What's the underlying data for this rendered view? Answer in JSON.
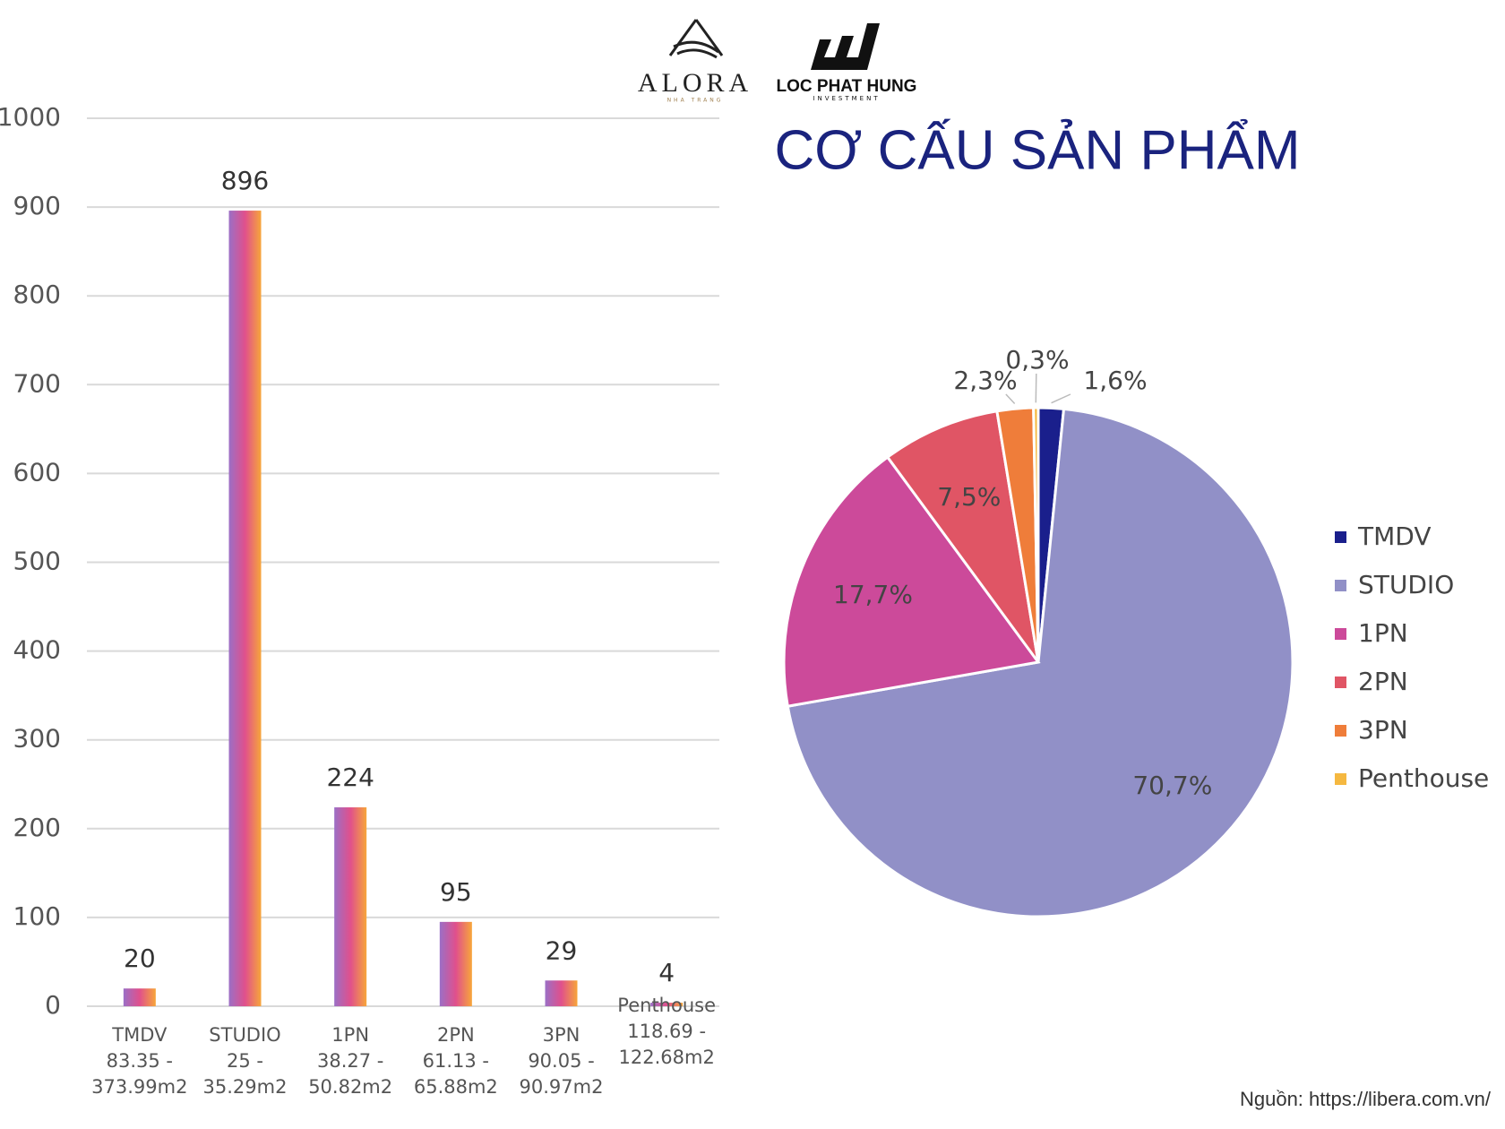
{
  "header": {
    "logo_1": {
      "name": "ALORA",
      "tagline": "NHA TRANG"
    },
    "logo_2": {
      "name": "LOC PHAT HUNG",
      "tagline": "INVESTMENT"
    },
    "title": "CƠ CẤU SẢN PHẨM"
  },
  "chart_data": [
    {
      "type": "bar",
      "categories": [
        [
          "TMDV",
          "83.35 -",
          "373.99m2"
        ],
        [
          "STUDIO",
          "25 -",
          "35.29m2"
        ],
        [
          "1PN",
          "38.27 -",
          "50.82m2"
        ],
        [
          "2PN",
          "61.13 -",
          "65.88m2"
        ],
        [
          "3PN",
          "90.05 -",
          "90.97m2"
        ],
        [
          "Penthouse",
          "118.69 -",
          "122.68m2"
        ]
      ],
      "values": [
        20,
        896,
        224,
        95,
        29,
        4
      ],
      "colors": [
        "#9b6fc6",
        "#e0508c",
        "#f7a63a"
      ],
      "ylim": [
        0,
        1000
      ],
      "yticks": [
        0,
        100,
        200,
        300,
        400,
        500,
        600,
        700,
        800,
        900,
        1000
      ],
      "grid": true
    },
    {
      "type": "pie",
      "categories": [
        "TMDV",
        "STUDIO",
        "1PN",
        "2PN",
        "3PN",
        "Penthouse"
      ],
      "values": [
        1.6,
        70.7,
        17.7,
        7.5,
        2.3,
        0.3
      ],
      "value_labels": [
        "1,6%",
        "70,7%",
        "17,7%",
        "7,5%",
        "2,3%",
        "0,3%"
      ],
      "colors": [
        "#1a1f8c",
        "#9190c7",
        "#cc4a9a",
        "#e05565",
        "#ef7d3a",
        "#f5b840"
      ],
      "legend": "right"
    }
  ],
  "source": "Nguồn: https://libera.com.vn/"
}
